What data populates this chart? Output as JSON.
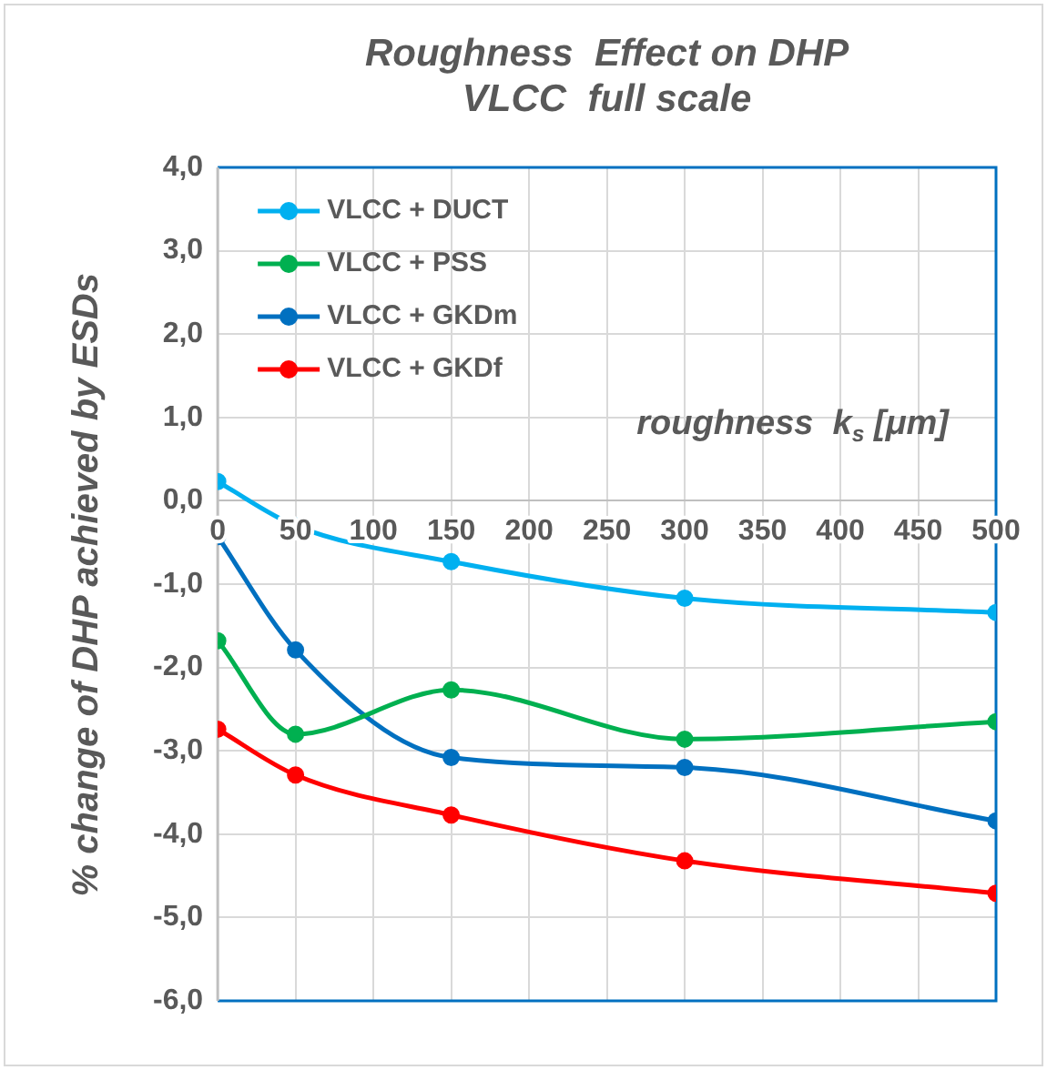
{
  "chart_data": {
    "type": "line",
    "title": "Roughness  Effect on DHP",
    "subtitle": "VLCC  full scale",
    "xlabel": "roughness  k$_{s}$ [μm]",
    "ylabel": "% change of DHP achieved by ESDs",
    "x": [
      0,
      50,
      150,
      300,
      500
    ],
    "series": [
      {
        "name": "VLCC + DUCT",
        "color": "#00b0f0",
        "values": [
          0.23,
          -0.3,
          -0.73,
          -1.17,
          -1.34
        ]
      },
      {
        "name": "VLCC + PSS",
        "color": "#00b050",
        "values": [
          -1.68,
          -2.8,
          -2.27,
          -2.86,
          -2.65
        ]
      },
      {
        "name": "VLCC + GKDm",
        "color": "#0070c0",
        "values": [
          -0.43,
          -1.79,
          -3.08,
          -3.2,
          -3.84
        ]
      },
      {
        "name": "VLCC + GKDf",
        "color": "#ff0000",
        "values": [
          -2.74,
          -3.29,
          -3.77,
          -4.32,
          -4.71
        ]
      }
    ],
    "xlim": [
      0,
      500
    ],
    "xticks": [
      0,
      50,
      100,
      150,
      200,
      250,
      300,
      350,
      400,
      450,
      500
    ],
    "ylim": [
      -6,
      4
    ],
    "yticks": [
      {
        "value": -6,
        "label": "-6,0"
      },
      {
        "value": -5,
        "label": "-5,0"
      },
      {
        "value": -4,
        "label": "-4,0"
      },
      {
        "value": -3,
        "label": "-3,0"
      },
      {
        "value": -2,
        "label": "-2,0"
      },
      {
        "value": -1,
        "label": "-1,0"
      },
      {
        "value": 0,
        "label": "0,0"
      },
      {
        "value": 1,
        "label": "1,0"
      },
      {
        "value": 2,
        "label": "2,0"
      },
      {
        "value": 3,
        "label": "3,0"
      },
      {
        "value": 4,
        "label": "4,0"
      }
    ],
    "grid": true,
    "legend": "top left",
    "marker": "circle",
    "line_style": "solid"
  }
}
